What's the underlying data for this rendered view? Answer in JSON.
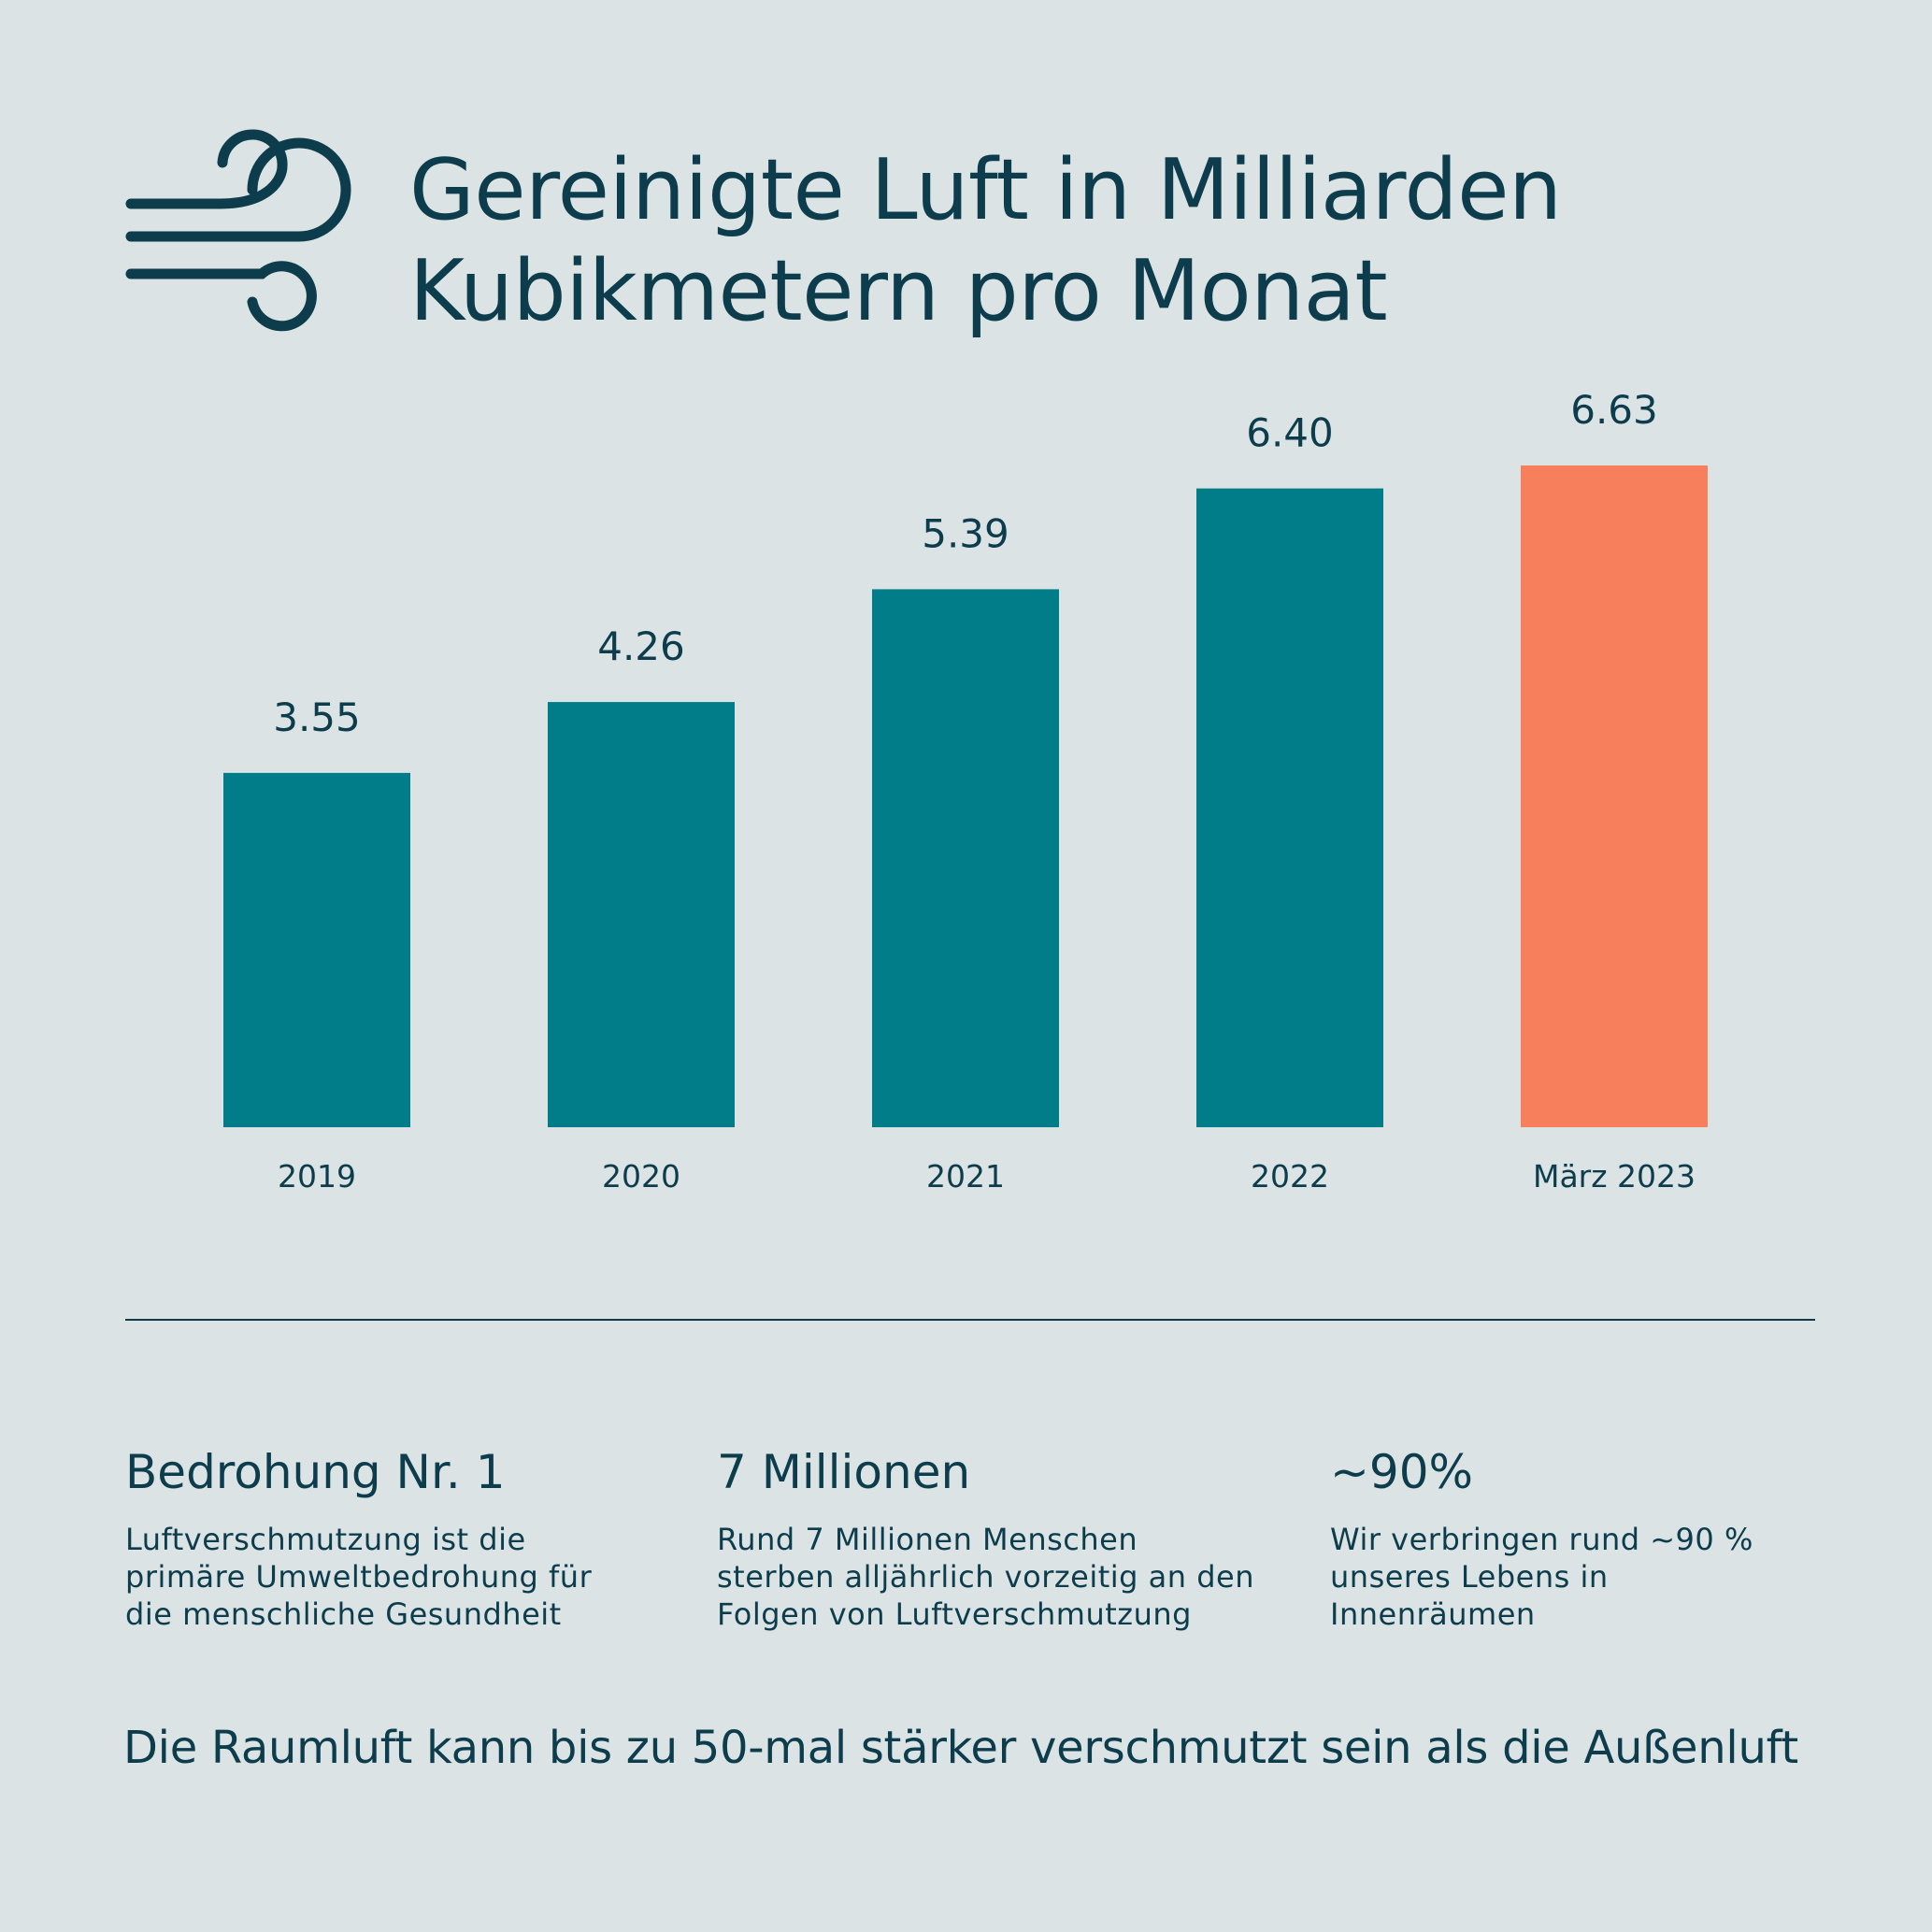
{
  "header": {
    "icon": "wind-icon",
    "title_line1": "Gereinigte Luft in Milliarden",
    "title_line2": "Kubikmetern pro Monat"
  },
  "colors": {
    "background": "#dbe3e4",
    "text": "#0d3d4d",
    "bar": "#007d89",
    "bar_highlight": "#f77f5c"
  },
  "chart_data": {
    "type": "bar",
    "title": "Gereinigte Luft in Milliarden Kubikmetern pro Monat",
    "categories": [
      "2019",
      "2020",
      "2021",
      "2022",
      "März 2023"
    ],
    "values": [
      3.55,
      4.26,
      5.39,
      6.4,
      6.63
    ],
    "value_labels": [
      "3.55",
      "4.26",
      "5.39",
      "6.40",
      "6.63"
    ],
    "highlight": [
      false,
      false,
      false,
      false,
      true
    ],
    "xlabel": "",
    "ylabel": "",
    "ylim": [
      0,
      6.63
    ],
    "grid": false,
    "legend": "none"
  },
  "stats": [
    {
      "head": "Bedrohung Nr. 1",
      "lines": [
        "Luftverschmutzung ist die",
        "primäre Umweltbedrohung für",
        "die menschliche Gesundheit"
      ]
    },
    {
      "head": "7 Millionen",
      "lines": [
        "Rund 7 Millionen Menschen",
        "sterben alljährlich vorzeitig an den",
        "Folgen von Luftverschmutzung"
      ]
    },
    {
      "head": "~90%",
      "lines": [
        "Wir verbringen rund ~90 %",
        "unseres Lebens in",
        "Innenräumen"
      ]
    }
  ],
  "footnote": "Die Raumluft kann bis zu 50-mal stärker verschmutzt sein als die Außenluft"
}
